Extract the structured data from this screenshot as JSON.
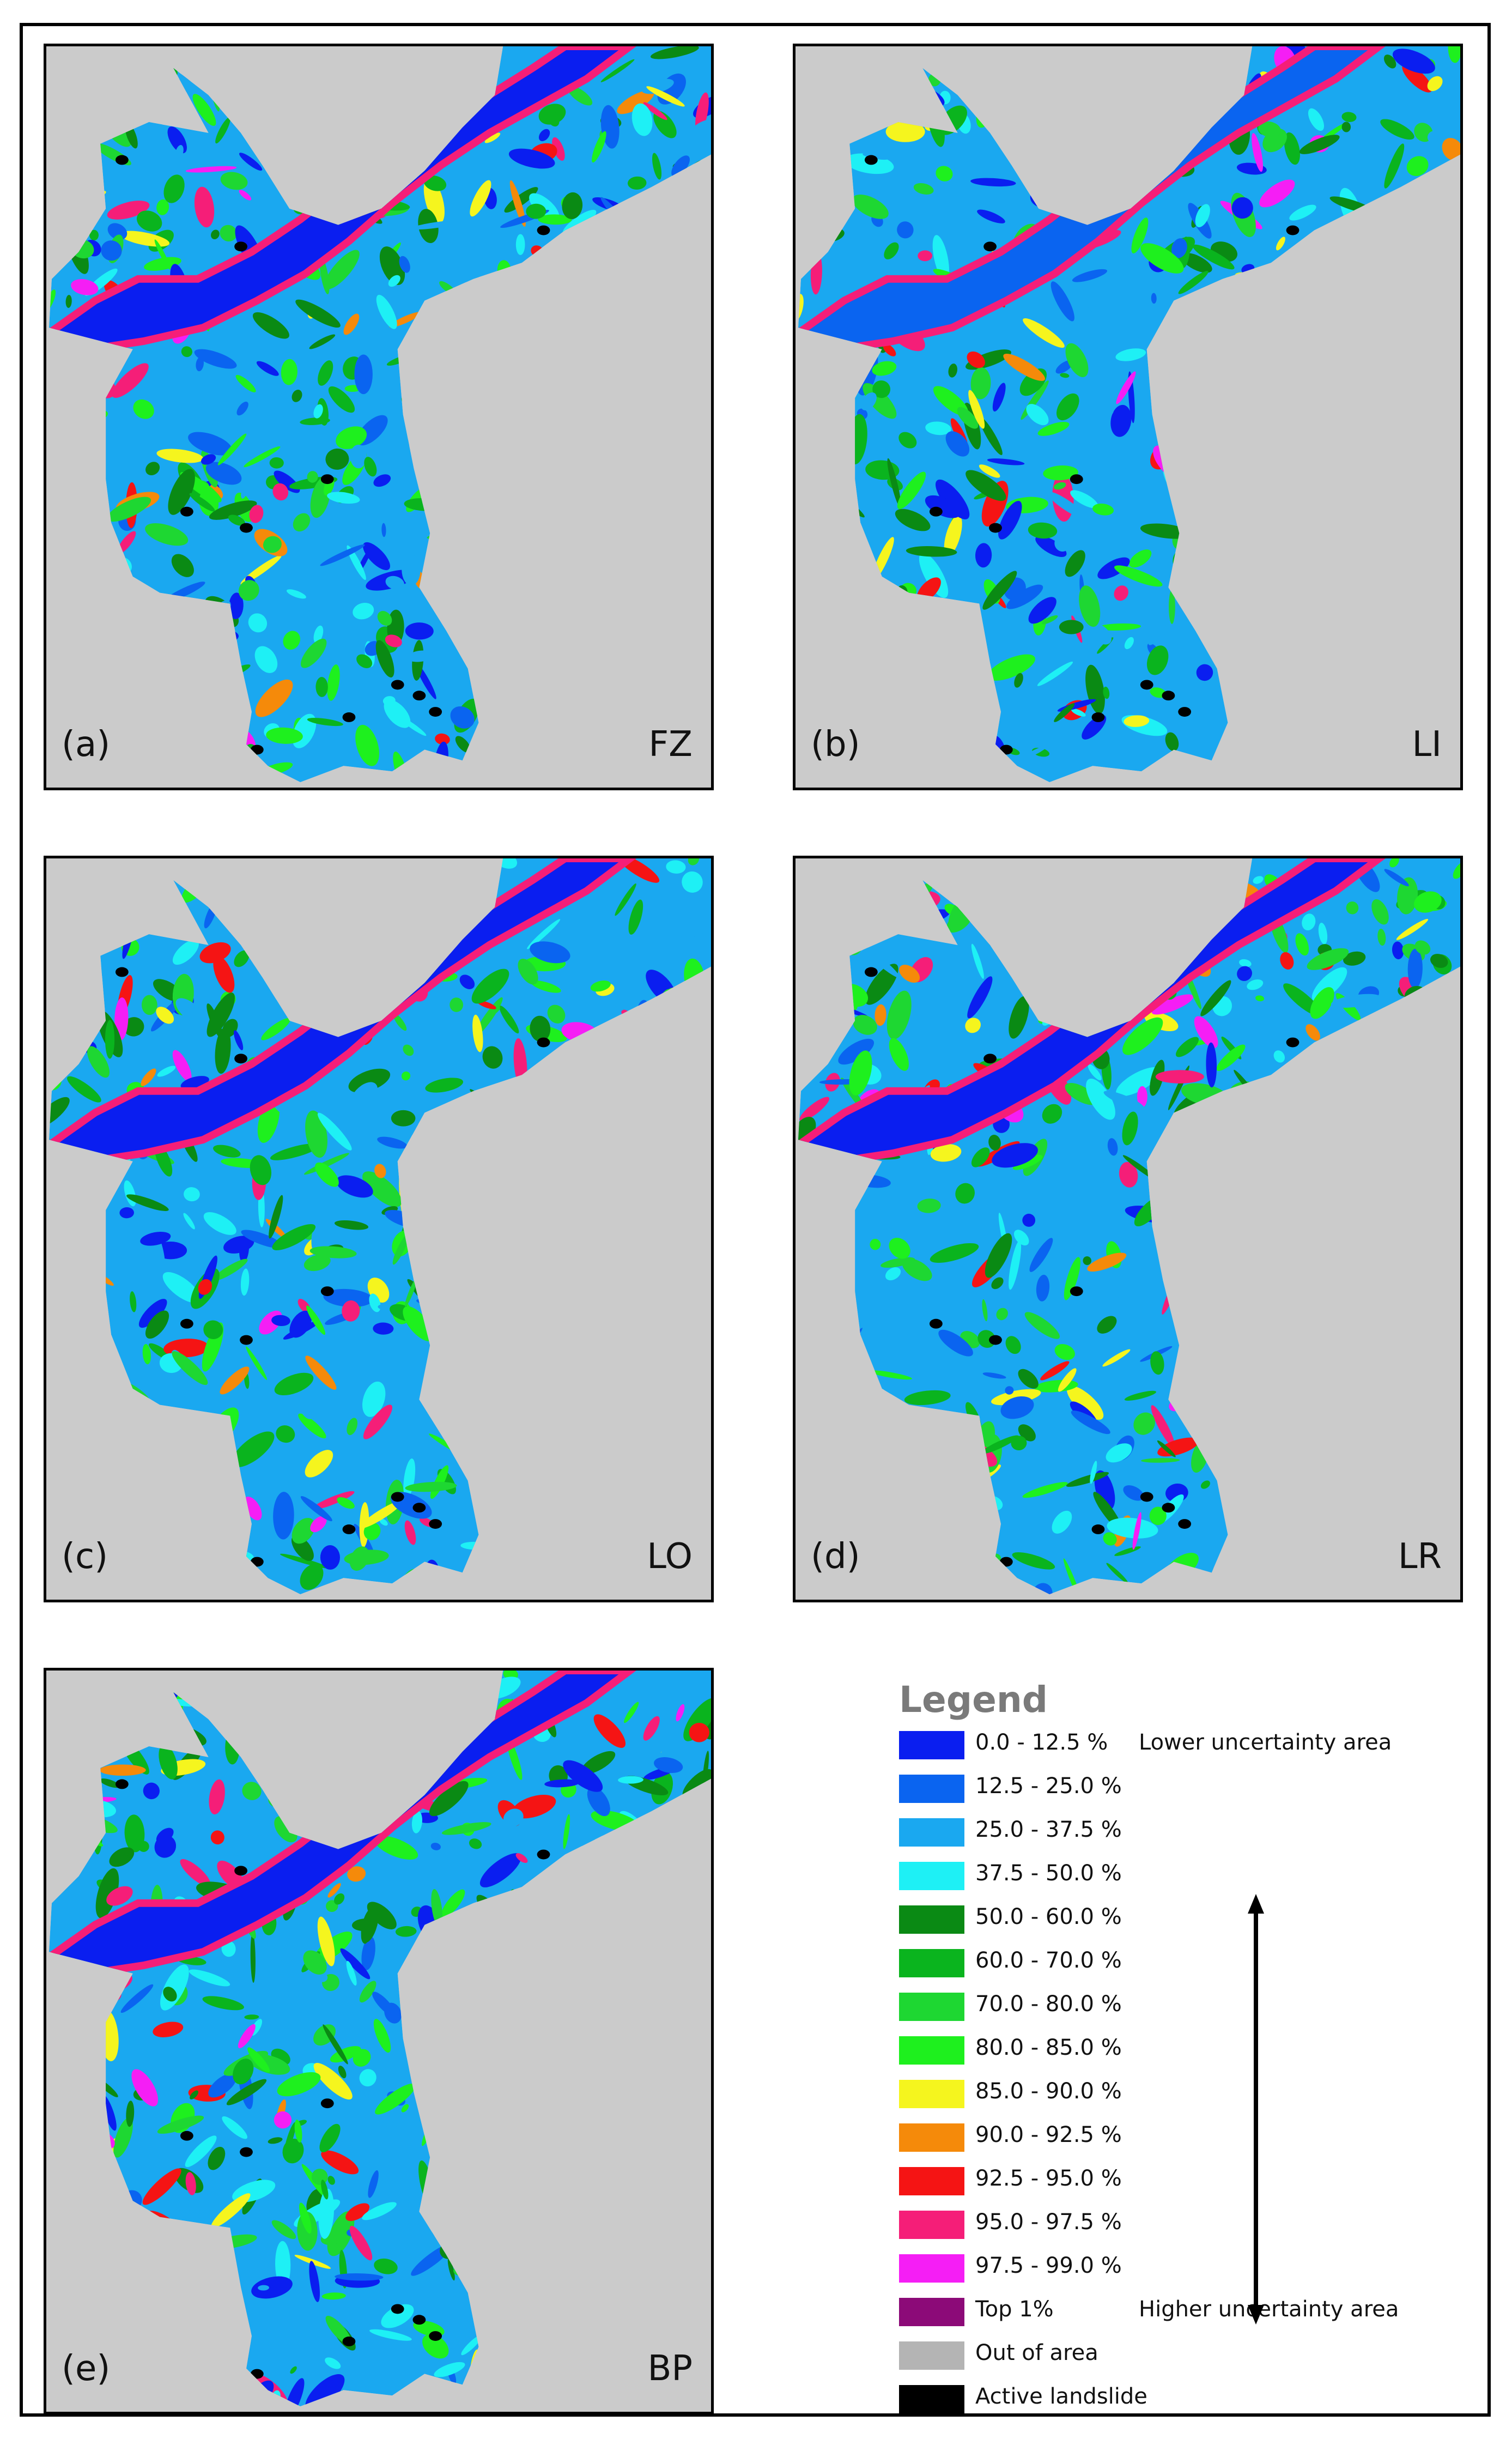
{
  "panels": [
    {
      "id": "a",
      "letter": "(a)",
      "model": "FZ"
    },
    {
      "id": "b",
      "letter": "(b)",
      "model": "LI"
    },
    {
      "id": "c",
      "letter": "(c)",
      "model": "LO"
    },
    {
      "id": "d",
      "letter": "(d)",
      "model": "LR"
    },
    {
      "id": "e",
      "letter": "(e)",
      "model": "BP"
    }
  ],
  "legend": {
    "title": "Legend",
    "items": [
      {
        "range": "0.0 - 12.5 %",
        "color": "#0a1ef0",
        "note": "Lower uncertainty area"
      },
      {
        "range": "12.5 - 25.0 %",
        "color": "#0a64f0",
        "note": ""
      },
      {
        "range": "25.0 - 37.5 %",
        "color": "#1aa8f0",
        "note": ""
      },
      {
        "range": "37.5 - 50.0 %",
        "color": "#1ef0f5",
        "note": ""
      },
      {
        "range": "50.0 - 60.0 %",
        "color": "#0a8a14",
        "note": ""
      },
      {
        "range": "60.0 - 70.0 %",
        "color": "#0ab41e",
        "note": ""
      },
      {
        "range": "70.0 - 80.0 %",
        "color": "#1ed732",
        "note": ""
      },
      {
        "range": "80.0 - 85.0 %",
        "color": "#1ef01e",
        "note": ""
      },
      {
        "range": "85.0 - 90.0 %",
        "color": "#f5f51e",
        "note": ""
      },
      {
        "range": "90.0 - 92.5 %",
        "color": "#f58a0a",
        "note": ""
      },
      {
        "range": "92.5 - 95.0 %",
        "color": "#f51414",
        "note": ""
      },
      {
        "range": "95.0 - 97.5 %",
        "color": "#f51e78",
        "note": ""
      },
      {
        "range": "97.5 - 99.0 %",
        "color": "#f51ef5",
        "note": ""
      },
      {
        "range": "Top 1%",
        "color": "#8c0a78",
        "note": "Higher uncertainty area"
      },
      {
        "range": "Out of area",
        "color": "#b4b4b4",
        "note": ""
      },
      {
        "range": "Active landslide",
        "color": "#000000",
        "note": ""
      }
    ]
  }
}
